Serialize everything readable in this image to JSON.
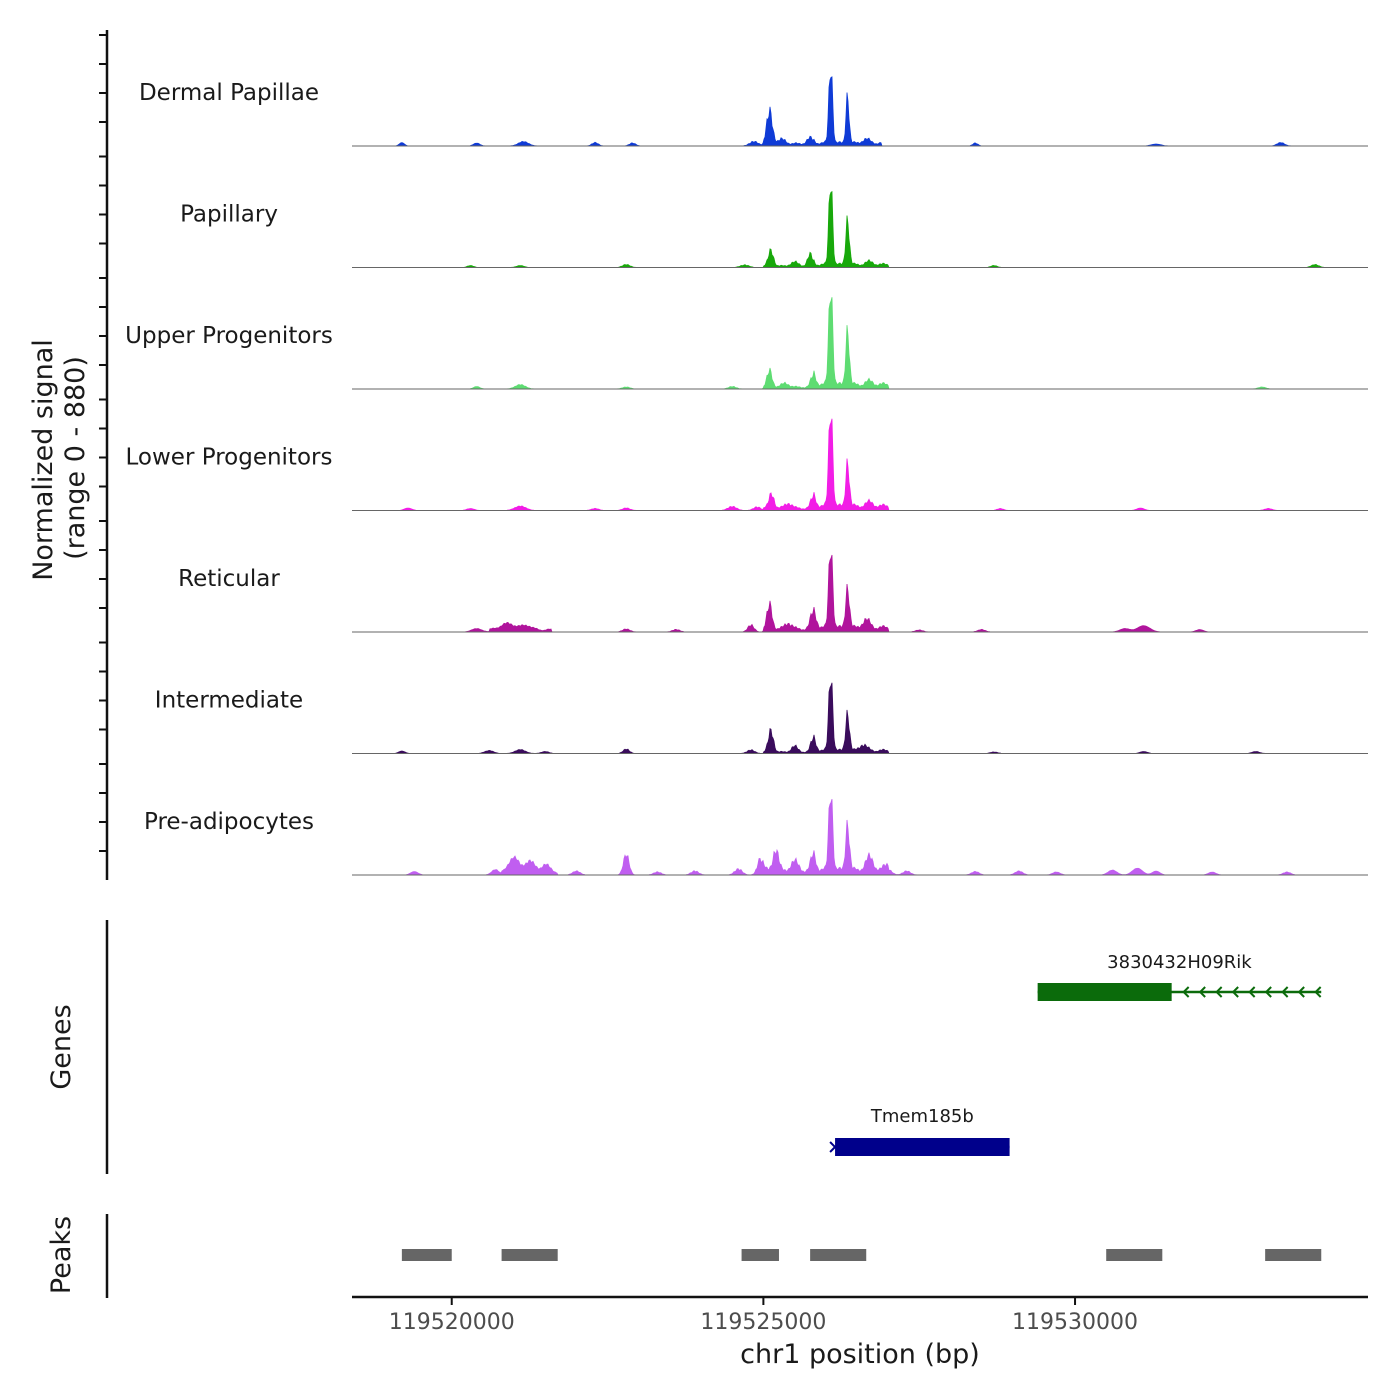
{
  "chart_data": {
    "type": "area",
    "title": "",
    "ylabel": "Normalized signal",
    "ylabel_range": "(range 0 - 880)",
    "ylim": [
      0,
      880
    ],
    "xlabel": "chr1 position (bp)",
    "xlim": [
      119518400,
      119534700
    ],
    "xticks": [
      {
        "value": 119520000,
        "label": "119520000"
      },
      {
        "value": 119525000,
        "label": "119525000"
      },
      {
        "value": 119530000,
        "label": "119530000"
      }
    ],
    "series": [
      {
        "name": "Dermal Papillae",
        "color": "#0f3bd6",
        "peaks": [
          [
            119519200,
            35,
            40
          ],
          [
            119520400,
            30,
            50
          ],
          [
            119521150,
            45,
            80
          ],
          [
            119522300,
            35,
            50
          ],
          [
            119522900,
            30,
            50
          ],
          [
            119524850,
            45,
            70
          ],
          [
            119525100,
            330,
            45
          ],
          [
            119525300,
            45,
            60
          ],
          [
            119525750,
            60,
            50
          ],
          [
            119526080,
            800,
            28
          ],
          [
            119526350,
            480,
            25
          ],
          [
            119526650,
            40,
            60
          ],
          [
            119528400,
            30,
            40
          ],
          [
            119531300,
            20,
            80
          ],
          [
            119533300,
            35,
            60
          ]
        ],
        "bumps": [
          [
            119525000,
            119525800,
            30
          ],
          [
            119525800,
            119526900,
            40
          ]
        ]
      },
      {
        "name": "Papillary",
        "color": "#18a80b",
        "peaks": [
          [
            119520300,
            20,
            50
          ],
          [
            119521100,
            20,
            60
          ],
          [
            119522800,
            30,
            60
          ],
          [
            119524700,
            25,
            70
          ],
          [
            119525120,
            160,
            40
          ],
          [
            119525500,
            40,
            60
          ],
          [
            119525750,
            120,
            40
          ],
          [
            119526080,
            880,
            28
          ],
          [
            119526350,
            460,
            28
          ],
          [
            119526700,
            30,
            60
          ],
          [
            119528700,
            20,
            50
          ],
          [
            119533850,
            30,
            60
          ]
        ],
        "bumps": [
          [
            119525000,
            119525800,
            20
          ],
          [
            119525800,
            119527000,
            40
          ]
        ]
      },
      {
        "name": "Upper Progenitors",
        "color": "#5edc72",
        "peaks": [
          [
            119520400,
            25,
            50
          ],
          [
            119521100,
            45,
            80
          ],
          [
            119522800,
            20,
            60
          ],
          [
            119524500,
            25,
            60
          ],
          [
            119525100,
            170,
            40
          ],
          [
            119525350,
            40,
            60
          ],
          [
            119525800,
            120,
            40
          ],
          [
            119526080,
            1020,
            30
          ],
          [
            119526350,
            560,
            28
          ],
          [
            119526700,
            35,
            60
          ],
          [
            119533000,
            20,
            60
          ]
        ],
        "bumps": [
          [
            119525000,
            119525800,
            25
          ],
          [
            119525800,
            119527000,
            60
          ]
        ]
      },
      {
        "name": "Lower Progenitors",
        "color": "#f21de6",
        "peaks": [
          [
            119519300,
            25,
            60
          ],
          [
            119520300,
            20,
            60
          ],
          [
            119521100,
            45,
            90
          ],
          [
            119522300,
            20,
            60
          ],
          [
            119522800,
            25,
            60
          ],
          [
            119524500,
            40,
            70
          ],
          [
            119524900,
            35,
            60
          ],
          [
            119525130,
            150,
            40
          ],
          [
            119525400,
            50,
            60
          ],
          [
            119525800,
            120,
            40
          ],
          [
            119526080,
            1020,
            30
          ],
          [
            119526350,
            450,
            28
          ],
          [
            119526700,
            40,
            60
          ],
          [
            119528800,
            20,
            50
          ],
          [
            119531050,
            25,
            60
          ],
          [
            119533100,
            20,
            60
          ]
        ],
        "bumps": [
          [
            119525000,
            119525800,
            30
          ],
          [
            119525800,
            119527000,
            60
          ]
        ]
      },
      {
        "name": "Reticular",
        "color": "#b0149c",
        "peaks": [
          [
            119520400,
            35,
            80
          ],
          [
            119520900,
            65,
            120
          ],
          [
            119521200,
            45,
            80
          ],
          [
            119522800,
            30,
            60
          ],
          [
            119523600,
            25,
            60
          ],
          [
            119524800,
            70,
            50
          ],
          [
            119525100,
            250,
            40
          ],
          [
            119525400,
            60,
            60
          ],
          [
            119525800,
            180,
            45
          ],
          [
            119526080,
            850,
            30
          ],
          [
            119526350,
            410,
            30
          ],
          [
            119526650,
            80,
            60
          ],
          [
            119527500,
            20,
            60
          ],
          [
            119528500,
            25,
            60
          ],
          [
            119530800,
            35,
            80
          ],
          [
            119531100,
            65,
            100
          ],
          [
            119532000,
            25,
            60
          ]
        ],
        "bumps": [
          [
            119520600,
            119521600,
            30
          ],
          [
            119525000,
            119525800,
            40
          ],
          [
            119525800,
            119527000,
            60
          ]
        ]
      },
      {
        "name": "Intermediate",
        "color": "#3a0c5c",
        "peaks": [
          [
            119519200,
            25,
            50
          ],
          [
            119520600,
            30,
            70
          ],
          [
            119521100,
            40,
            80
          ],
          [
            119521500,
            20,
            60
          ],
          [
            119522800,
            45,
            50
          ],
          [
            119524800,
            35,
            60
          ],
          [
            119525120,
            220,
            40
          ],
          [
            119525500,
            60,
            50
          ],
          [
            119525800,
            140,
            40
          ],
          [
            119526080,
            790,
            30
          ],
          [
            119526350,
            380,
            30
          ],
          [
            119526600,
            60,
            60
          ],
          [
            119528700,
            15,
            60
          ],
          [
            119531100,
            20,
            60
          ],
          [
            119532900,
            20,
            60
          ]
        ],
        "bumps": [
          [
            119525000,
            119525800,
            20
          ],
          [
            119525800,
            119527000,
            40
          ]
        ]
      },
      {
        "name": "Pre-adipocytes",
        "color": "#c05ef0",
        "peaks": [
          [
            119519400,
            35,
            60
          ],
          [
            119520700,
            55,
            60
          ],
          [
            119521000,
            160,
            70
          ],
          [
            119521250,
            120,
            70
          ],
          [
            119521500,
            80,
            60
          ],
          [
            119522000,
            40,
            60
          ],
          [
            119522800,
            210,
            45
          ],
          [
            119523300,
            30,
            60
          ],
          [
            119523900,
            40,
            60
          ],
          [
            119524600,
            60,
            60
          ],
          [
            119524950,
            130,
            50
          ],
          [
            119525200,
            220,
            45
          ],
          [
            119525500,
            100,
            60
          ],
          [
            119525800,
            170,
            40
          ],
          [
            119526080,
            830,
            30
          ],
          [
            119526350,
            470,
            30
          ],
          [
            119526700,
            130,
            60
          ],
          [
            119527000,
            55,
            60
          ],
          [
            119527300,
            40,
            60
          ],
          [
            119528400,
            35,
            60
          ],
          [
            119529100,
            40,
            60
          ],
          [
            119529700,
            30,
            60
          ],
          [
            119530600,
            50,
            70
          ],
          [
            119531000,
            70,
            80
          ],
          [
            119531300,
            40,
            60
          ],
          [
            119532200,
            30,
            60
          ],
          [
            119533400,
            30,
            60
          ]
        ],
        "bumps": [
          [
            119520800,
            119521700,
            45
          ],
          [
            119524900,
            119525800,
            55
          ],
          [
            119525800,
            119527000,
            70
          ]
        ]
      }
    ],
    "genes": [
      {
        "name": "3830432H09Rik",
        "color": "#0b6b0b",
        "strand": "-",
        "start": 119529400,
        "end": 119533950,
        "exon_start": 119529400,
        "exon_end": 119531550
      },
      {
        "name": "Tmem185b",
        "color": "#00008b",
        "strand": "+",
        "start": 119526150,
        "end": 119528950,
        "exon_start": 119526150,
        "exon_end": 119528950
      }
    ],
    "genes_track_label": "Genes",
    "peaks_track_label": "Peaks",
    "peak_regions": [
      [
        119519200,
        119520000
      ],
      [
        119520800,
        119521700
      ],
      [
        119524650,
        119525250
      ],
      [
        119525750,
        119526650
      ],
      [
        119530500,
        119531400
      ],
      [
        119533050,
        119533950
      ]
    ],
    "peak_color": "#666666"
  }
}
